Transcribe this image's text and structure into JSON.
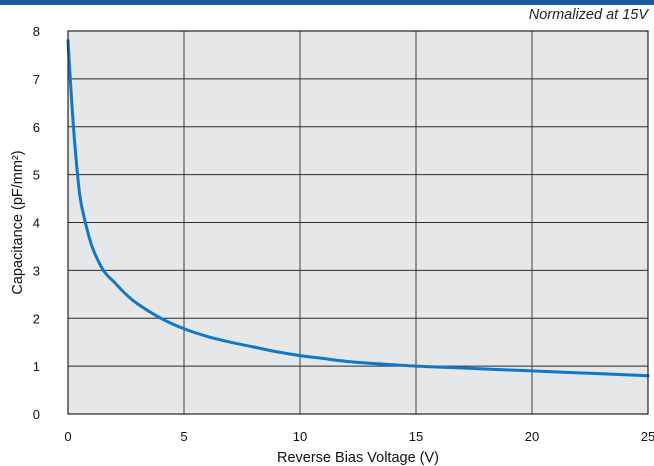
{
  "note": "Normalized at 15V",
  "colors": {
    "header_band": "#1b5a9f",
    "plot_background": "#e6e7e8",
    "grid": "#2b2b2b",
    "curve": "#1377c8"
  },
  "chart_data": {
    "type": "line",
    "title": "",
    "xlabel": "Reverse Bias Voltage (V)",
    "ylabel": "Capacitance (pF/mm²)",
    "xlim": [
      0,
      25
    ],
    "ylim": [
      0,
      8
    ],
    "xticks": [
      0,
      5,
      10,
      15,
      20,
      25
    ],
    "yticks": [
      0,
      1,
      2,
      3,
      4,
      5,
      6,
      7,
      8
    ],
    "xtick_labels": [
      "0",
      "5",
      "10",
      "15",
      "20",
      "25"
    ],
    "ytick_labels": [
      "0",
      "1",
      "2",
      "3",
      "4",
      "5",
      "6",
      "7",
      "8"
    ],
    "grid": true,
    "legend": "none",
    "series": [
      {
        "x": [
          0,
          0.15,
          0.3,
          0.5,
          0.7,
          1.0,
          1.3,
          1.6,
          2.0,
          2.5,
          3.0,
          4.0,
          5.0,
          6.0,
          7.0,
          8.0,
          9.0,
          10.0,
          11.0,
          12.0,
          13.0,
          14.0,
          15.0,
          16.0,
          17.0,
          18.0,
          19.0,
          20.0,
          21.0,
          22.0,
          23.0,
          24.0,
          25.0
        ],
        "y": [
          7.8,
          6.6,
          5.6,
          4.6,
          4.1,
          3.55,
          3.2,
          2.95,
          2.75,
          2.5,
          2.3,
          2.0,
          1.78,
          1.62,
          1.5,
          1.4,
          1.3,
          1.22,
          1.16,
          1.1,
          1.06,
          1.03,
          1.0,
          0.98,
          0.96,
          0.94,
          0.92,
          0.9,
          0.88,
          0.86,
          0.84,
          0.82,
          0.8
        ]
      }
    ]
  }
}
